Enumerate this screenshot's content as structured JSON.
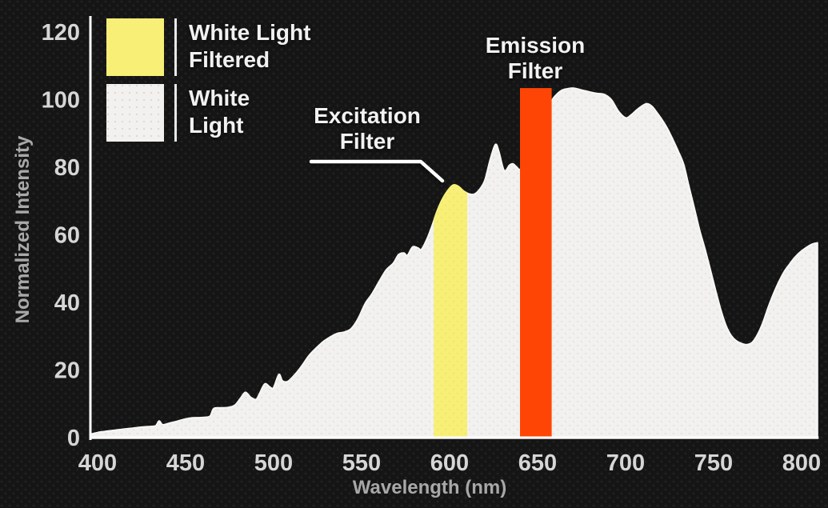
{
  "figure_title": "White light spectrum with excitation and emission filters",
  "y_axis": {
    "label": "Normalized Intensity",
    "ticks": [
      0,
      20,
      40,
      60,
      80,
      100,
      120
    ],
    "range": [
      0,
      120
    ]
  },
  "x_axis": {
    "label": "Wavelength (nm)",
    "ticks": [
      400,
      450,
      500,
      550,
      600,
      650,
      700,
      750,
      800
    ],
    "range": [
      396,
      809
    ]
  },
  "legend": {
    "items": [
      {
        "label": "White Light\nFiltered",
        "swatch": "yellow",
        "color": "#F8EF76"
      },
      {
        "label": "White\nLight",
        "swatch": "white",
        "color": "#F2F1EF"
      }
    ]
  },
  "annotations": {
    "excitation_label": "Excitation\nFilter",
    "emission_label": "Emission\nFilter"
  },
  "colors": {
    "background": "#151515",
    "white_fill": "#F2F1EF",
    "white_fill_dots": "#D9D9D7",
    "yellow_fill": "#F8EF76",
    "yellow_fill_dots": "#EBE168",
    "orange": "#FF4505",
    "axis_line": "#FFFFFF",
    "tick_text": "#D6D6D6",
    "axis_title_text": "#A8A8A8",
    "annotation_text": "#F2F2F2"
  },
  "chart_data": {
    "type": "area",
    "title": "",
    "xlabel": "Wavelength (nm)",
    "ylabel": "Normalized Intensity",
    "xlim": [
      396,
      809
    ],
    "ylim": [
      0,
      120
    ],
    "legend_position": "top-left",
    "grid": false,
    "series": [
      {
        "name": "White Light",
        "points": [
          [
            396,
            1
          ],
          [
            400,
            1.5
          ],
          [
            405,
            1.9
          ],
          [
            410,
            2.2
          ],
          [
            415,
            2.5
          ],
          [
            420,
            2.8
          ],
          [
            425,
            3.1
          ],
          [
            430,
            3.3
          ],
          [
            433,
            3.5
          ],
          [
            435,
            4.9
          ],
          [
            437,
            3.8
          ],
          [
            441,
            4.3
          ],
          [
            445,
            4.8
          ],
          [
            449,
            5.4
          ],
          [
            453,
            5.8
          ],
          [
            457,
            5.9
          ],
          [
            461,
            6
          ],
          [
            464,
            6.4
          ],
          [
            466,
            8.6
          ],
          [
            470,
            8.8
          ],
          [
            474,
            8.9
          ],
          [
            478,
            9.6
          ],
          [
            481,
            11.5
          ],
          [
            484,
            13.4
          ],
          [
            487,
            11.9
          ],
          [
            490,
            11.3
          ],
          [
            492,
            13
          ],
          [
            495,
            15.9
          ],
          [
            498,
            14.9
          ],
          [
            500,
            14.8
          ],
          [
            503,
            18.7
          ],
          [
            505,
            16.8
          ],
          [
            508,
            16.6
          ],
          [
            512,
            18.6
          ],
          [
            516,
            21.2
          ],
          [
            520,
            24.2
          ],
          [
            524,
            26.4
          ],
          [
            528,
            28.3
          ],
          [
            532,
            29.7
          ],
          [
            536,
            30.8
          ],
          [
            540,
            31.2
          ],
          [
            544,
            32.2
          ],
          [
            548,
            35.2
          ],
          [
            552,
            39.6
          ],
          [
            556,
            42.6
          ],
          [
            560,
            46.2
          ],
          [
            564,
            49.6
          ],
          [
            568,
            51.6
          ],
          [
            571,
            54.1
          ],
          [
            574,
            54.6
          ],
          [
            576,
            53.9
          ],
          [
            579,
            56.4
          ],
          [
            582,
            56.1
          ],
          [
            584,
            55.7
          ],
          [
            587,
            58.6
          ],
          [
            590,
            62.6
          ],
          [
            593,
            67.1
          ],
          [
            596,
            70.6
          ],
          [
            599,
            73.1
          ],
          [
            602,
            74.7
          ],
          [
            605,
            74.3
          ],
          [
            608,
            72.9
          ],
          [
            611,
            72.1
          ],
          [
            614,
            72
          ],
          [
            617,
            73.4
          ],
          [
            620,
            76.1
          ],
          [
            623,
            82.1
          ],
          [
            626,
            86.7
          ],
          [
            628,
            84.6
          ],
          [
            631,
            79
          ],
          [
            634,
            80.6
          ],
          [
            636,
            81
          ],
          [
            638,
            80.1
          ],
          [
            640,
            79.3
          ],
          [
            643,
            80.6
          ],
          [
            646,
            83.1
          ],
          [
            649,
            86.6
          ],
          [
            652,
            90.6
          ],
          [
            655,
            95.1
          ],
          [
            658,
            99.6
          ],
          [
            661,
            101.6
          ],
          [
            664,
            102.8
          ],
          [
            667,
            103.2
          ],
          [
            670,
            103.4
          ],
          [
            673,
            103.1
          ],
          [
            676,
            102.7
          ],
          [
            680,
            102.2
          ],
          [
            684,
            101.8
          ],
          [
            688,
            101.5
          ],
          [
            692,
            99.9
          ],
          [
            696,
            96.5
          ],
          [
            700,
            94.6
          ],
          [
            703,
            95.4
          ],
          [
            706,
            96.8
          ],
          [
            709,
            98
          ],
          [
            712,
            98.8
          ],
          [
            715,
            98
          ],
          [
            718,
            96
          ],
          [
            721,
            93.8
          ],
          [
            724,
            91.2
          ],
          [
            727,
            88
          ],
          [
            730,
            84.6
          ],
          [
            733,
            80.8
          ],
          [
            736,
            74.3
          ],
          [
            739,
            68
          ],
          [
            742,
            61.5
          ],
          [
            745,
            56
          ],
          [
            748,
            50
          ],
          [
            751,
            43.8
          ],
          [
            754,
            38
          ],
          [
            757,
            33.2
          ],
          [
            760,
            30.2
          ],
          [
            763,
            28.6
          ],
          [
            766,
            27.8
          ],
          [
            769,
            27.5
          ],
          [
            772,
            28.2
          ],
          [
            775,
            30.5
          ],
          [
            778,
            34
          ],
          [
            781,
            38.5
          ],
          [
            784,
            42.5
          ],
          [
            787,
            46
          ],
          [
            790,
            49
          ],
          [
            793,
            51.2
          ],
          [
            796,
            53.2
          ],
          [
            799,
            54.8
          ],
          [
            802,
            56
          ],
          [
            805,
            57
          ],
          [
            807,
            57.4
          ],
          [
            809,
            57.6
          ]
        ]
      }
    ],
    "excitation_filter": {
      "name": "White Light Filtered",
      "from_nm": 591,
      "to_nm": 610
    },
    "emission_filter": {
      "name": "Emission Filter",
      "from_nm": 640,
      "to_nm": 658,
      "bar_top_intensity": 103.4
    }
  }
}
